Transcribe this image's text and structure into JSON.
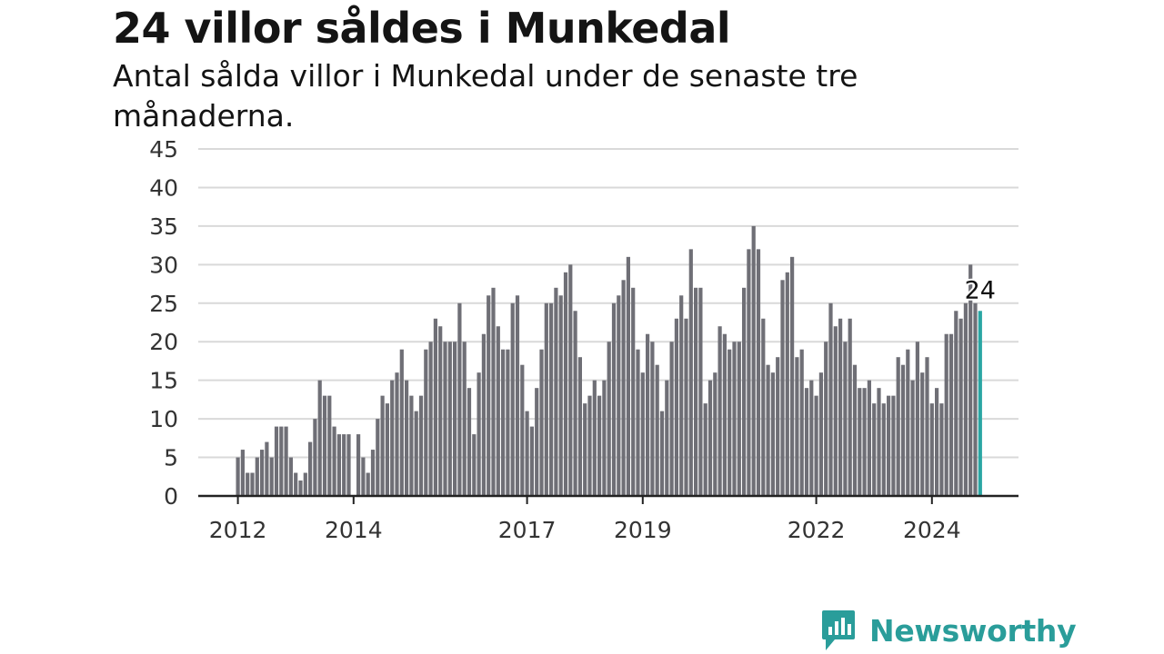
{
  "title": "24 villor såldes i Munkedal",
  "subtitle": "Antal sålda villor i Munkedal under de senaste tre månaderna.",
  "brand": {
    "name": "Newsworthy",
    "icon": "newsworthy-logo-icon",
    "color": "#2a9d9a"
  },
  "chart_data": {
    "type": "bar",
    "title": "24 villor såldes i Munkedal",
    "subtitle": "Antal sålda villor i Munkedal under de senaste tre månaderna.",
    "xlabel": "",
    "ylabel": "",
    "ylim": [
      0,
      45
    ],
    "yticks": [
      0,
      5,
      10,
      15,
      20,
      25,
      30,
      35,
      40,
      45
    ],
    "grid": true,
    "x_start": "2012-01",
    "x_tick_labels": [
      "2012",
      "2014",
      "2017",
      "2019",
      "2022",
      "2024"
    ],
    "colors": {
      "bar": "#6f6f76",
      "highlight": "#2aa6a3",
      "grid": "#d9d9d9",
      "axis": "#222222"
    },
    "highlight_label": "24",
    "series": [
      {
        "values": [
          5,
          6,
          3,
          3,
          5,
          6,
          7,
          5,
          9,
          9,
          9,
          5,
          3,
          2,
          3,
          7,
          10,
          15,
          13,
          13,
          9,
          8,
          8,
          8,
          0,
          8,
          5,
          3,
          6,
          10,
          13,
          12,
          15,
          16,
          19,
          15,
          13,
          11,
          13,
          19,
          20,
          23,
          22,
          20,
          20,
          20,
          25,
          20,
          14,
          8,
          16,
          21,
          26,
          27,
          22,
          19,
          19,
          25,
          26,
          17,
          11,
          9,
          14,
          19,
          25,
          25,
          27,
          26,
          29,
          30,
          24,
          18,
          12,
          13,
          15,
          13,
          15,
          20,
          25,
          26,
          28,
          31,
          27,
          19,
          16,
          21,
          20,
          17,
          11,
          15,
          20,
          23,
          26,
          23,
          32,
          27,
          27,
          12,
          15,
          16,
          22,
          21,
          19,
          20,
          20,
          27,
          32,
          35,
          32,
          23,
          17,
          16,
          18,
          28,
          29,
          31,
          18,
          19,
          14,
          15,
          13,
          16,
          20,
          25,
          22,
          23,
          20,
          23,
          17,
          14,
          14,
          15,
          12,
          14,
          12,
          13,
          13,
          18,
          17,
          19,
          15,
          20,
          16,
          18,
          12,
          14,
          12,
          21,
          21,
          24,
          23,
          25,
          30,
          25,
          24
        ]
      }
    ]
  }
}
